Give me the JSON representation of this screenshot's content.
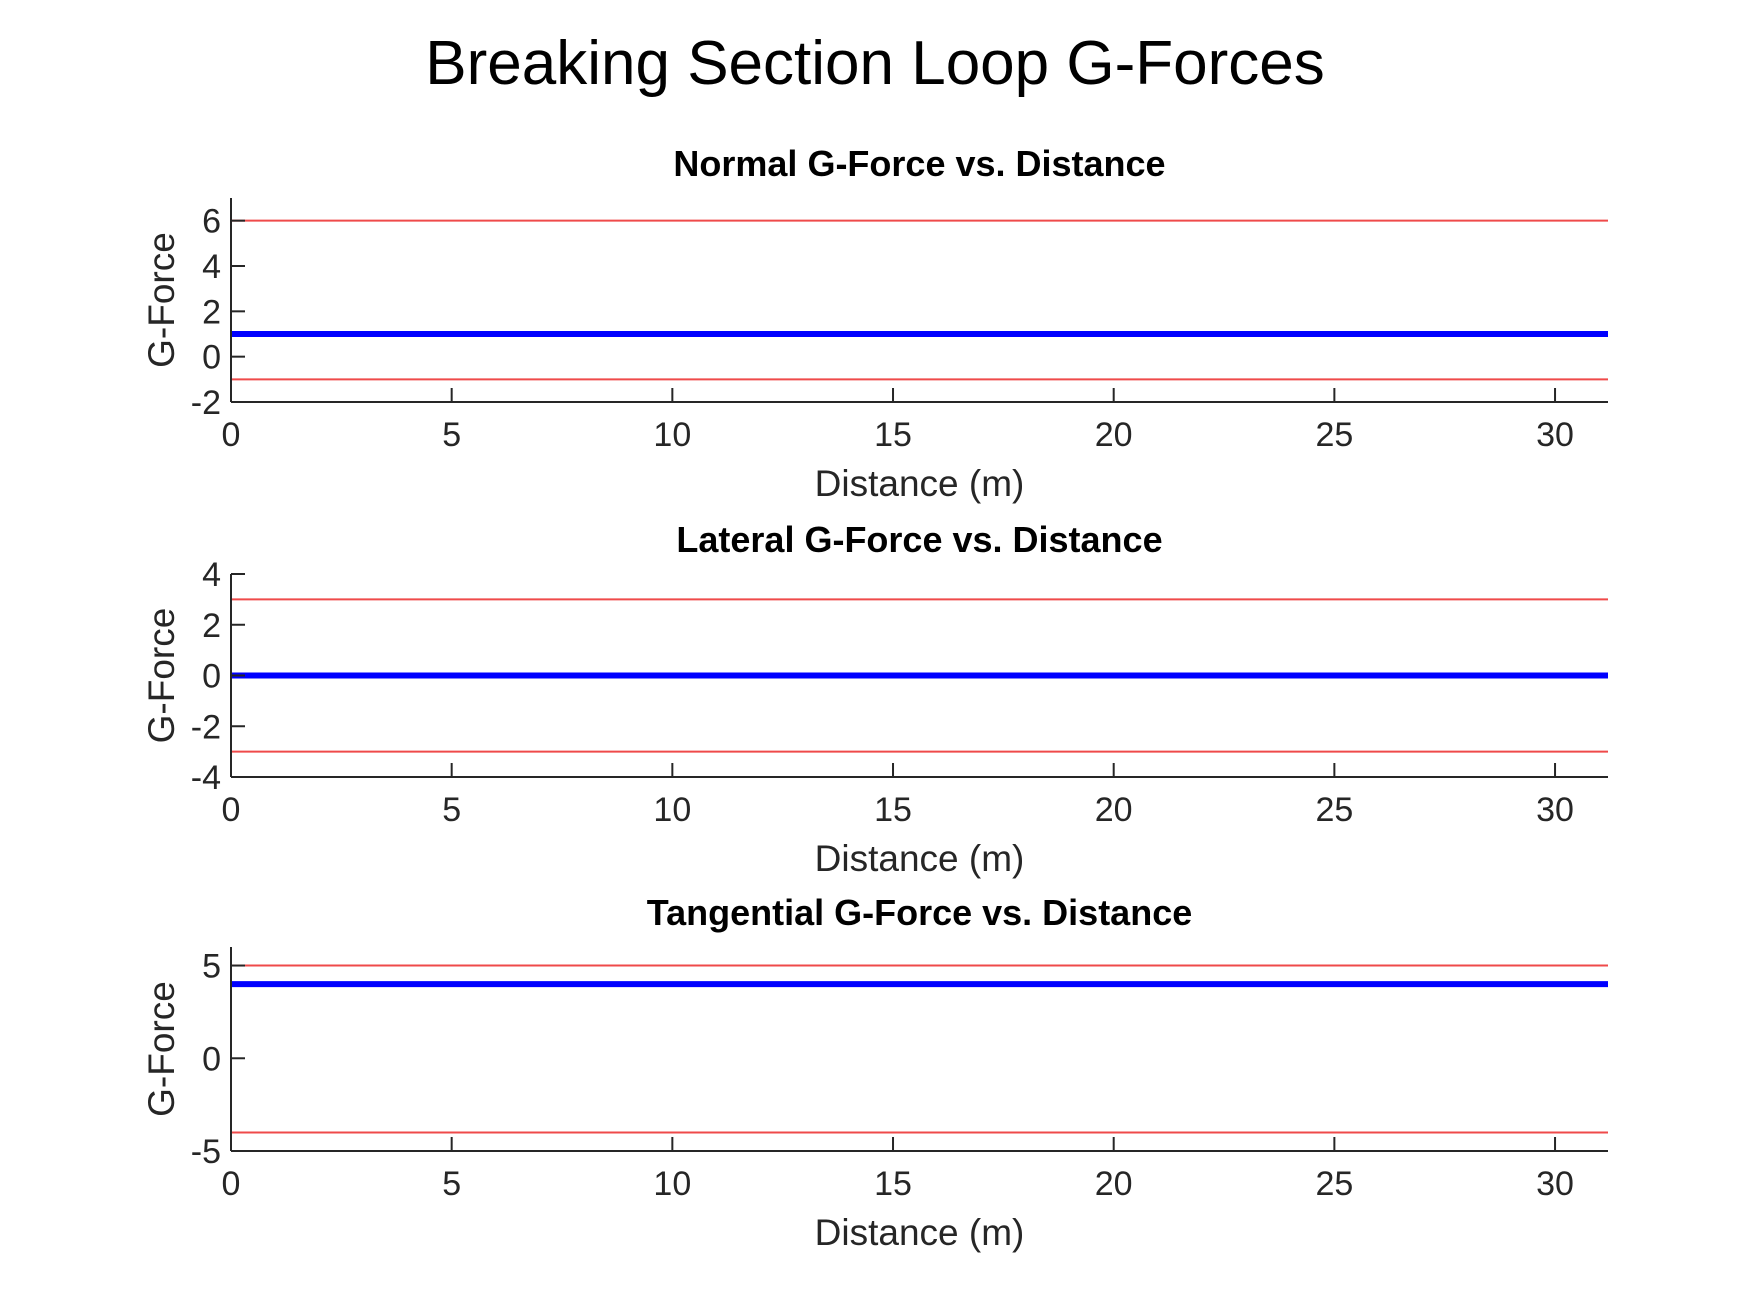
{
  "title": "Breaking Section Loop G-Forces",
  "colors": {
    "data": "#0000ff",
    "limit": "#ef4a4a",
    "axis": "#262626"
  },
  "chart_data": [
    {
      "type": "line",
      "title": "Normal G-Force vs. Distance",
      "xlabel": "Distance (m)",
      "ylabel": "G-Force",
      "xlim": [
        0,
        31.2
      ],
      "ylim": [
        -2,
        7
      ],
      "xticks": [
        0,
        5,
        10,
        15,
        20,
        25,
        30
      ],
      "yticks": [
        -2,
        0,
        2,
        4,
        6
      ],
      "grid": false,
      "series": [
        {
          "values": [
            1,
            1
          ],
          "x": [
            0,
            31.2
          ],
          "color": "#0000ff",
          "role": "data"
        },
        {
          "values": [
            6,
            6
          ],
          "x": [
            0,
            31.2
          ],
          "color": "#ef4a4a",
          "role": "limit"
        },
        {
          "values": [
            -1,
            -1
          ],
          "x": [
            0,
            31.2
          ],
          "color": "#ef4a4a",
          "role": "limit"
        }
      ]
    },
    {
      "type": "line",
      "title": "Lateral G-Force vs. Distance",
      "xlabel": "Distance (m)",
      "ylabel": "G-Force",
      "xlim": [
        0,
        31.2
      ],
      "ylim": [
        -4,
        4
      ],
      "xticks": [
        0,
        5,
        10,
        15,
        20,
        25,
        30
      ],
      "yticks": [
        -4,
        -2,
        0,
        2,
        4
      ],
      "grid": false,
      "series": [
        {
          "values": [
            0,
            0
          ],
          "x": [
            0,
            31.2
          ],
          "color": "#0000ff",
          "role": "data"
        },
        {
          "values": [
            3,
            3
          ],
          "x": [
            0,
            31.2
          ],
          "color": "#ef4a4a",
          "role": "limit"
        },
        {
          "values": [
            -3,
            -3
          ],
          "x": [
            0,
            31.2
          ],
          "color": "#ef4a4a",
          "role": "limit"
        }
      ]
    },
    {
      "type": "line",
      "title": "Tangential G-Force vs. Distance",
      "xlabel": "Distance (m)",
      "ylabel": "G-Force",
      "xlim": [
        0,
        31.2
      ],
      "ylim": [
        -5,
        6
      ],
      "xticks": [
        0,
        5,
        10,
        15,
        20,
        25,
        30
      ],
      "yticks": [
        -5,
        0,
        5
      ],
      "grid": false,
      "series": [
        {
          "values": [
            4,
            4
          ],
          "x": [
            0,
            31.2
          ],
          "color": "#0000ff",
          "role": "data"
        },
        {
          "values": [
            5,
            5
          ],
          "x": [
            0,
            31.2
          ],
          "color": "#ef4a4a",
          "role": "limit"
        },
        {
          "values": [
            -4,
            -4
          ],
          "x": [
            0,
            31.2
          ],
          "color": "#ef4a4a",
          "role": "limit"
        }
      ]
    }
  ]
}
